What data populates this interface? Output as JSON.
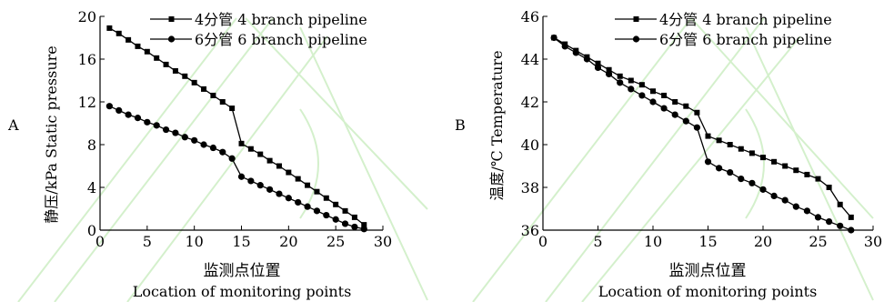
{
  "chart_data": [
    {
      "panel_label": "A",
      "type": "line",
      "xlabel_cn": "监测点位置",
      "xlabel_en": "Location of monitoring points",
      "ylabel": "静压/kPa  Static pressure",
      "xlim": [
        0,
        30
      ],
      "ylim": [
        0,
        20
      ],
      "xticks": [
        0,
        5,
        10,
        15,
        20,
        25,
        30
      ],
      "yticks": [
        0,
        4,
        8,
        12,
        16,
        20
      ],
      "grid": false,
      "legend_position": "top-right",
      "series": [
        {
          "name": "4分管 4 branch pipeline",
          "marker": "square",
          "x": [
            1,
            2,
            3,
            4,
            5,
            6,
            7,
            8,
            9,
            10,
            11,
            12,
            13,
            14,
            15,
            16,
            17,
            18,
            19,
            20,
            21,
            22,
            23,
            24,
            25,
            26,
            27,
            28
          ],
          "y": [
            18.9,
            18.4,
            17.8,
            17.2,
            16.7,
            16.1,
            15.5,
            14.9,
            14.4,
            13.8,
            13.2,
            12.6,
            12.0,
            11.4,
            8.1,
            7.6,
            7.1,
            6.5,
            6.0,
            5.4,
            4.8,
            4.2,
            3.6,
            3.0,
            2.4,
            1.8,
            1.2,
            0.5
          ]
        },
        {
          "name": "6分管 6 branch pipeline",
          "marker": "circle",
          "x": [
            1,
            2,
            3,
            4,
            5,
            6,
            7,
            8,
            9,
            10,
            11,
            12,
            13,
            14,
            15,
            16,
            17,
            18,
            19,
            20,
            21,
            22,
            23,
            24,
            25,
            26,
            27,
            28
          ],
          "y": [
            11.6,
            11.2,
            10.8,
            10.5,
            10.1,
            9.8,
            9.4,
            9.1,
            8.7,
            8.4,
            8.0,
            7.7,
            7.3,
            6.7,
            5.0,
            4.6,
            4.2,
            3.8,
            3.4,
            3.0,
            2.6,
            2.2,
            1.8,
            1.4,
            1.0,
            0.6,
            0.3,
            0.1
          ]
        }
      ]
    },
    {
      "panel_label": "B",
      "type": "line",
      "xlabel_cn": "监测点位置",
      "xlabel_en": "Location of monitoring points",
      "ylabel": "温度/℃  Temperature",
      "xlim": [
        0,
        30
      ],
      "ylim": [
        36,
        46
      ],
      "xticks": [
        0,
        5,
        10,
        15,
        20,
        25,
        30
      ],
      "yticks": [
        36,
        38,
        40,
        42,
        44,
        46
      ],
      "grid": false,
      "legend_position": "top-right",
      "series": [
        {
          "name": "4分管 4 branch pipeline",
          "marker": "square",
          "x": [
            1,
            2,
            3,
            4,
            5,
            6,
            7,
            8,
            9,
            10,
            11,
            12,
            13,
            14,
            15,
            16,
            17,
            18,
            19,
            20,
            21,
            22,
            23,
            24,
            25,
            26,
            27,
            28
          ],
          "y": [
            45.0,
            44.7,
            44.4,
            44.1,
            43.8,
            43.5,
            43.2,
            43.0,
            42.8,
            42.5,
            42.3,
            42.0,
            41.8,
            41.5,
            40.4,
            40.2,
            40.0,
            39.8,
            39.6,
            39.4,
            39.2,
            39.0,
            38.8,
            38.6,
            38.4,
            38.0,
            37.2,
            36.6
          ]
        },
        {
          "name": "6分管 6 branch pipeline",
          "marker": "circle",
          "x": [
            1,
            2,
            3,
            4,
            5,
            6,
            7,
            8,
            9,
            10,
            11,
            12,
            13,
            14,
            15,
            16,
            17,
            18,
            19,
            20,
            21,
            22,
            23,
            24,
            25,
            26,
            27,
            28
          ],
          "y": [
            45.0,
            44.6,
            44.3,
            44.0,
            43.6,
            43.3,
            42.9,
            42.6,
            42.3,
            42.0,
            41.7,
            41.4,
            41.1,
            40.8,
            39.2,
            38.9,
            38.7,
            38.4,
            38.2,
            37.9,
            37.6,
            37.4,
            37.1,
            36.9,
            36.6,
            36.4,
            36.2,
            36.0
          ]
        }
      ]
    }
  ]
}
